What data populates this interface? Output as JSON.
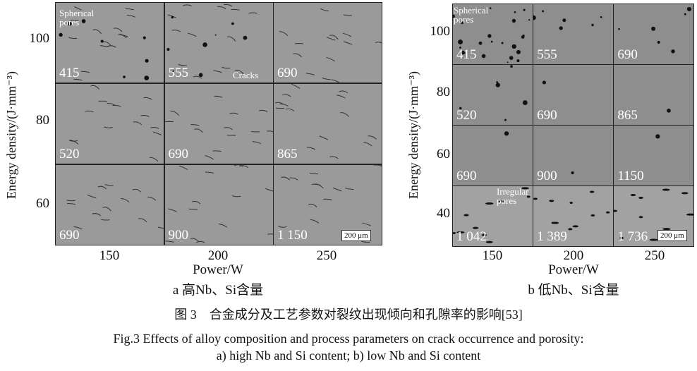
{
  "panel_a": {
    "ylabel": "Energy density/(J·mm⁻³)",
    "yticks": [
      "100",
      "80",
      "60"
    ],
    "xticks": [
      "150",
      "200",
      "250"
    ],
    "xlabel": "Power/W",
    "sublabel": "a  高Nb、Si含量",
    "cells": [
      "415",
      "555",
      "690",
      "520",
      "690",
      "865",
      "690",
      "900",
      "1 150"
    ],
    "annotations": {
      "spherical": "Spherical pores",
      "cracks": "Cracks"
    },
    "scale_bar": "200 μm"
  },
  "panel_b": {
    "ylabel": "Energy density/(J·mm⁻³)",
    "yticks": [
      "100",
      "80",
      "60",
      "40"
    ],
    "xticks": [
      "150",
      "200",
      "250"
    ],
    "xlabel": "Power/W",
    "sublabel": "b  低Nb、Si含量",
    "cells": [
      "415",
      "555",
      "690",
      "520",
      "690",
      "865",
      "690",
      "900",
      "1150",
      "1 042",
      "1 389",
      "1 736"
    ],
    "annotations": {
      "spherical": "Spherical pores",
      "irregular": "Irregular pores"
    },
    "scale_bar": "200 μm"
  },
  "caption": {
    "zh": "图 3　合金成分及工艺参数对裂纹出现倾向和孔隙率的影响[53]",
    "en1": "Fig.3 Effects of alloy composition and process parameters on crack occurrence and porosity:",
    "en2": "a) high Nb and Si content; b) low Nb and Si content"
  }
}
